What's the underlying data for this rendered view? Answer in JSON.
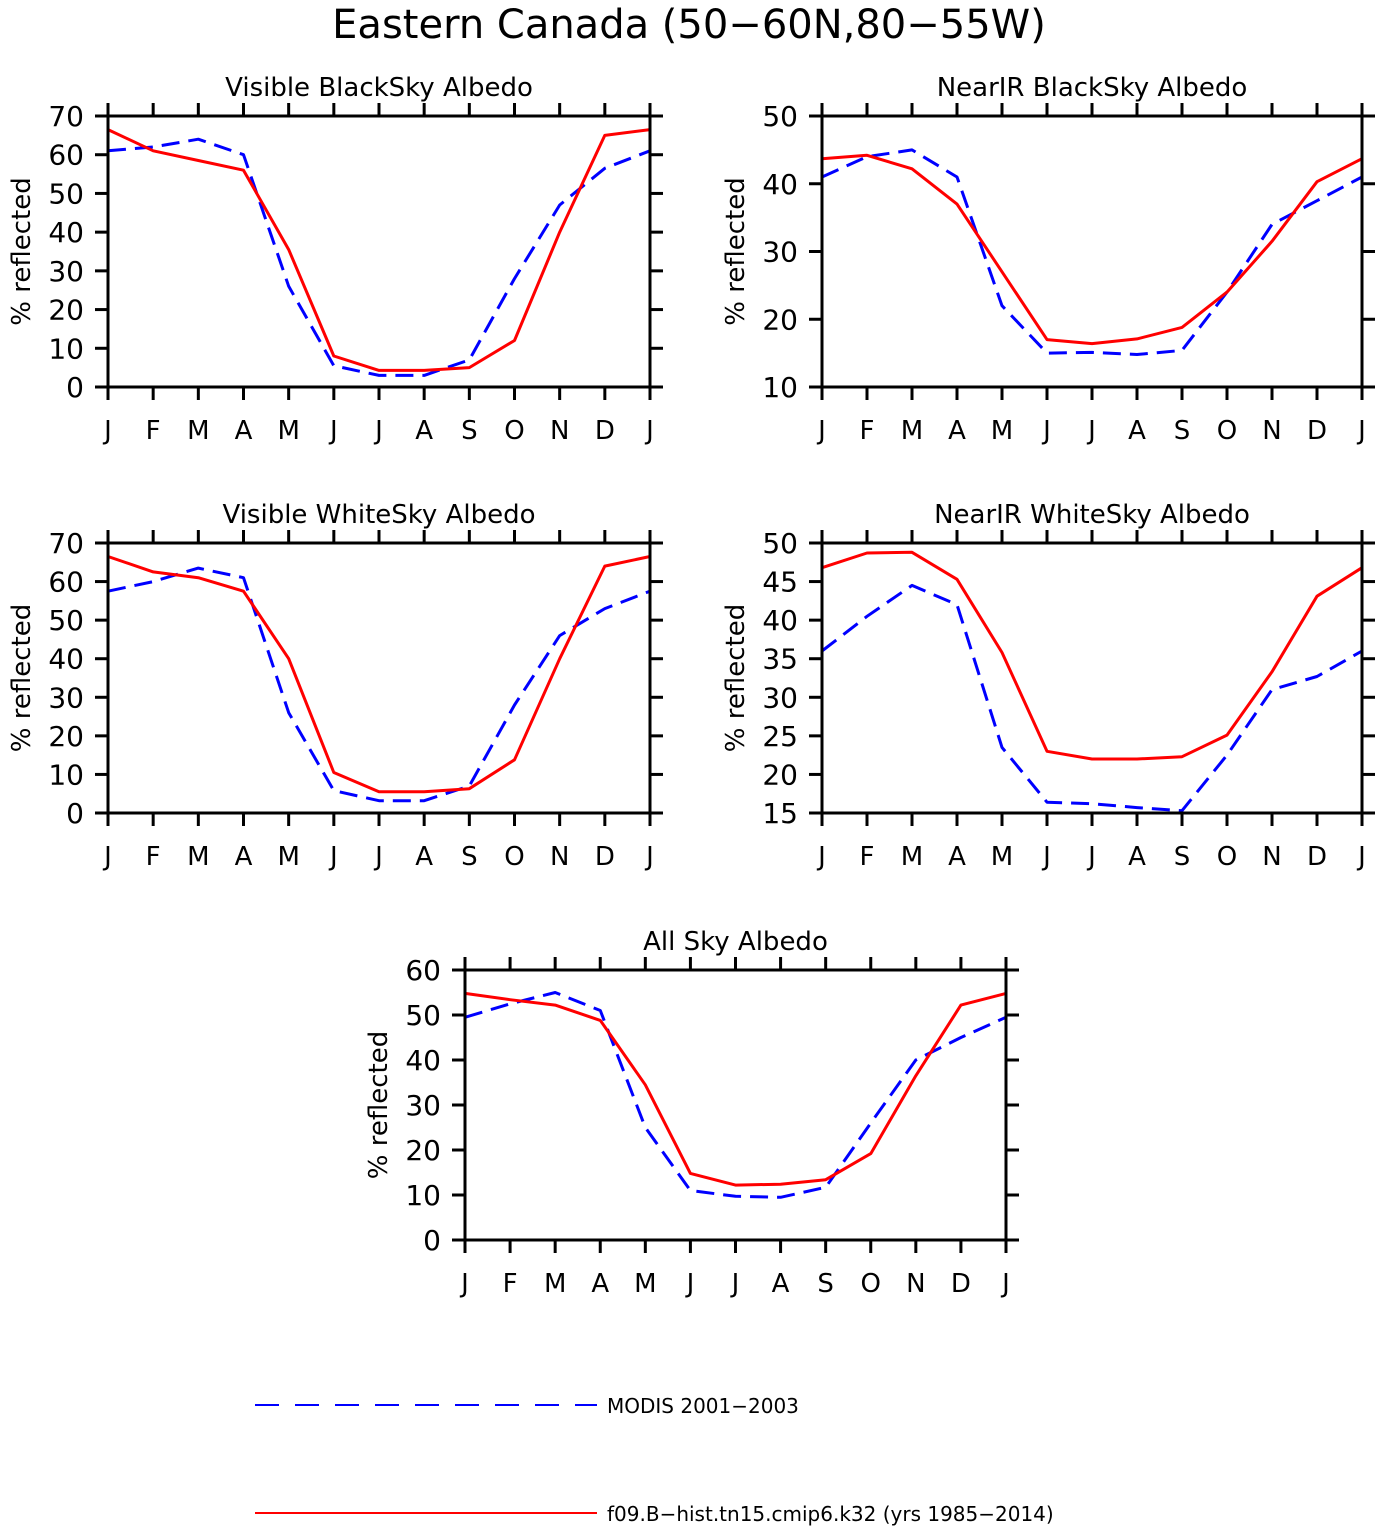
{
  "figure": {
    "title": "Eastern Canada (50−60N,80−55W)"
  },
  "legend": {
    "placement": "bottom",
    "entries": [
      {
        "label": "MODIS 2001−2003",
        "color": "#0000ff",
        "style": "dashed"
      },
      {
        "label": "f09.B−hist.tn15.cmip6.k32 (yrs 1985−2014)",
        "color": "#ff0000",
        "style": "solid"
      }
    ]
  },
  "chart_data": [
    {
      "type": "line",
      "title": "Visible BlackSky Albedo",
      "ylabel": "% reflected",
      "xlabel": "",
      "categories": [
        "J",
        "F",
        "M",
        "A",
        "M",
        "J",
        "J",
        "A",
        "S",
        "O",
        "N",
        "D",
        "J"
      ],
      "ylim": [
        0,
        70
      ],
      "yticks": [
        0,
        10,
        20,
        30,
        40,
        50,
        60,
        70
      ],
      "grid": false,
      "series": [
        {
          "name": "MODIS 2001−2003",
          "color": "#0000ff",
          "style": "dashed",
          "values": [
            61,
            62,
            64,
            60,
            26,
            5.5,
            3,
            3,
            7,
            28,
            47,
            56.5,
            61
          ]
        },
        {
          "name": "f09.B−hist.tn15.cmip6.k32 (yrs 1985−2014)",
          "color": "#ff0000",
          "style": "solid",
          "values": [
            66.5,
            61,
            58.5,
            56,
            35.5,
            8,
            4.3,
            4.3,
            5,
            12,
            40,
            65,
            66.5
          ]
        }
      ]
    },
    {
      "type": "line",
      "title": "NearIR BlackSky Albedo",
      "ylabel": "% reflected",
      "xlabel": "",
      "categories": [
        "J",
        "F",
        "M",
        "A",
        "M",
        "J",
        "J",
        "A",
        "S",
        "O",
        "N",
        "D",
        "J"
      ],
      "ylim": [
        10,
        50
      ],
      "yticks": [
        10,
        20,
        30,
        40,
        50
      ],
      "grid": false,
      "series": [
        {
          "name": "MODIS 2001−2003",
          "color": "#0000ff",
          "style": "dashed",
          "values": [
            41,
            44,
            45,
            41,
            22,
            15,
            15.1,
            14.8,
            15.4,
            24,
            34,
            37.5,
            41
          ]
        },
        {
          "name": "f09.B−hist.tn15.cmip6.k32 (yrs 1985−2014)",
          "color": "#ff0000",
          "style": "solid",
          "values": [
            43.7,
            44.2,
            42.2,
            37,
            27,
            17,
            16.4,
            17.1,
            18.8,
            24,
            31.5,
            40.3,
            43.7
          ]
        }
      ]
    },
    {
      "type": "line",
      "title": "Visible WhiteSky Albedo",
      "ylabel": "% reflected",
      "xlabel": "",
      "categories": [
        "J",
        "F",
        "M",
        "A",
        "M",
        "J",
        "J",
        "A",
        "S",
        "O",
        "N",
        "D",
        "J"
      ],
      "ylim": [
        0,
        70
      ],
      "yticks": [
        0,
        10,
        20,
        30,
        40,
        50,
        60,
        70
      ],
      "grid": false,
      "series": [
        {
          "name": "MODIS 2001−2003",
          "color": "#0000ff",
          "style": "dashed",
          "values": [
            57.5,
            60,
            63.5,
            61,
            26,
            5.8,
            3.2,
            3.2,
            7,
            28,
            46,
            53,
            57.5
          ]
        },
        {
          "name": "f09.B−hist.tn15.cmip6.k32 (yrs 1985−2014)",
          "color": "#ff0000",
          "style": "solid",
          "values": [
            66.5,
            62.5,
            61,
            57.5,
            40,
            10.5,
            5.5,
            5.5,
            6.3,
            13.8,
            40,
            64,
            66.5
          ]
        }
      ]
    },
    {
      "type": "line",
      "title": "NearIR WhiteSky Albedo",
      "ylabel": "% reflected",
      "xlabel": "",
      "categories": [
        "J",
        "F",
        "M",
        "A",
        "M",
        "J",
        "J",
        "A",
        "S",
        "O",
        "N",
        "D",
        "J"
      ],
      "ylim": [
        15,
        50
      ],
      "yticks": [
        15,
        20,
        25,
        30,
        35,
        40,
        45,
        50
      ],
      "grid": false,
      "series": [
        {
          "name": "MODIS 2001−2003",
          "color": "#0000ff",
          "style": "dashed",
          "values": [
            36,
            40.5,
            44.5,
            42,
            23.5,
            16.4,
            16.2,
            15.7,
            15.3,
            22.5,
            31,
            32.7,
            36
          ]
        },
        {
          "name": "f09.B−hist.tn15.cmip6.k32 (yrs 1985−2014)",
          "color": "#ff0000",
          "style": "solid",
          "values": [
            46.8,
            48.7,
            48.8,
            45.3,
            35.8,
            23,
            22,
            22,
            22.3,
            25.1,
            33.3,
            43.1,
            46.8
          ]
        }
      ]
    },
    {
      "type": "line",
      "title": "All Sky Albedo",
      "ylabel": "% reflected",
      "xlabel": "",
      "categories": [
        "J",
        "F",
        "M",
        "A",
        "M",
        "J",
        "J",
        "A",
        "S",
        "O",
        "N",
        "D",
        "J"
      ],
      "ylim": [
        0,
        60
      ],
      "yticks": [
        0,
        10,
        20,
        30,
        40,
        50,
        60
      ],
      "grid": false,
      "series": [
        {
          "name": "MODIS 2001−2003",
          "color": "#0000ff",
          "style": "dashed",
          "values": [
            49.5,
            52.5,
            55,
            51,
            25,
            11,
            9.7,
            9.5,
            11.7,
            26,
            40,
            45,
            49.5
          ]
        },
        {
          "name": "f09.B−hist.tn15.cmip6.k32 (yrs 1985−2014)",
          "color": "#ff0000",
          "style": "solid",
          "values": [
            54.8,
            53.4,
            52.2,
            48.8,
            34.5,
            14.8,
            12.2,
            12.4,
            13.4,
            19.2,
            36.5,
            52.2,
            54.8
          ]
        }
      ]
    }
  ]
}
